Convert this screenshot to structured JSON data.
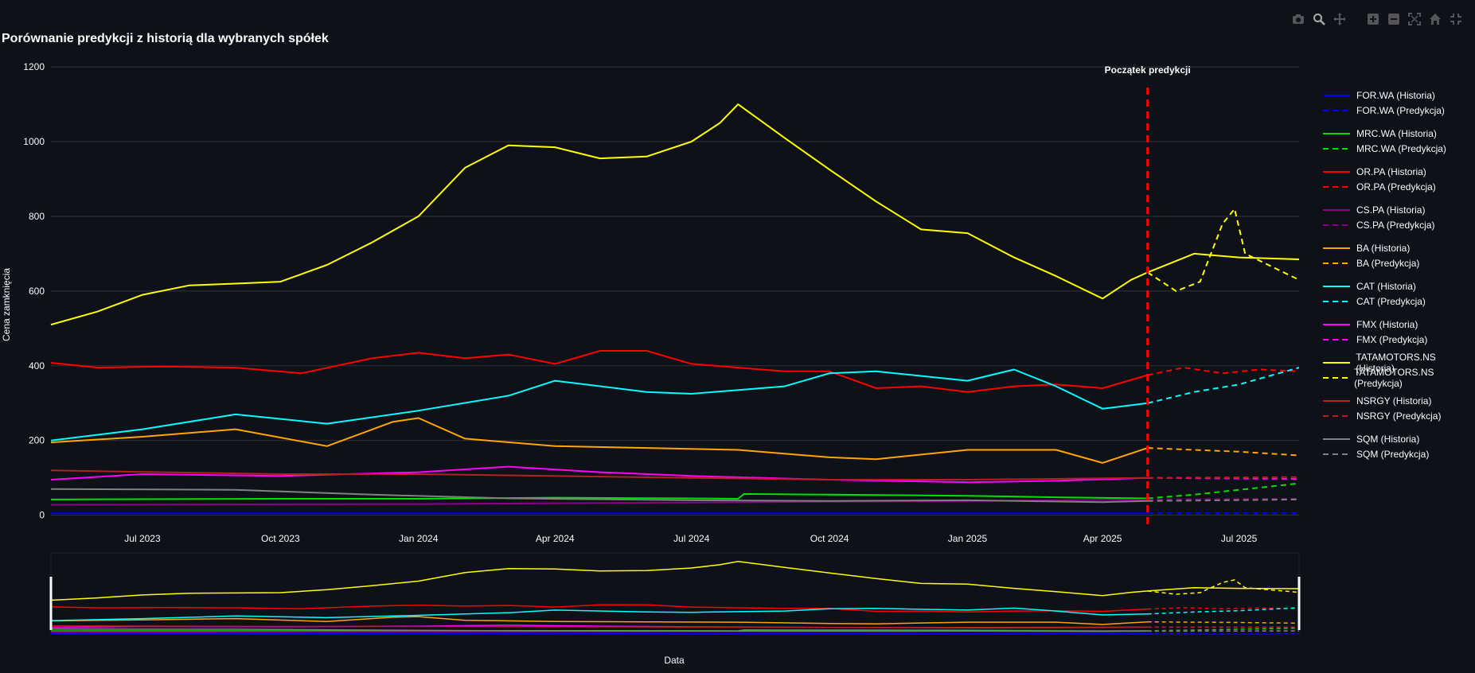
{
  "title": "Porównanie predykcji z historią dla wybranych spółek",
  "modebar": [
    {
      "icon": "camera-icon",
      "label": "Download plot"
    },
    {
      "icon": "zoom-icon",
      "label": "Zoom"
    },
    {
      "icon": "pan-icon",
      "label": "Pan"
    },
    {
      "icon": "zoom-in-icon",
      "label": "Zoom in"
    },
    {
      "icon": "zoom-out-icon",
      "label": "Zoom out"
    },
    {
      "icon": "autoscale-icon",
      "label": "Autoscale"
    },
    {
      "icon": "home-icon",
      "label": "Reset axes"
    },
    {
      "icon": "fullscreen-icon",
      "label": "Fullscreen"
    }
  ],
  "colors": {
    "background": "#0e1117",
    "grid": "#31333f",
    "text": "#fafafa",
    "prediction_line": "#ff0000"
  },
  "chart_data": {
    "type": "line",
    "title": "Porównanie predykcji z historią dla wybranych spółek",
    "xlabel": "Data",
    "ylabel": "Cena zamknięcia",
    "xlim": [
      "2023-05-01",
      "2025-08-10"
    ],
    "ylim": [
      -5,
      1230
    ],
    "x_ticks": [
      "Jul 2023",
      "Oct 2023",
      "Jan 2024",
      "Apr 2024",
      "Jul 2024",
      "Oct 2024",
      "Jan 2025",
      "Apr 2025",
      "Jul 2025"
    ],
    "x_tick_dates": [
      "2023-07-01",
      "2023-10-01",
      "2024-01-01",
      "2024-04-01",
      "2024-07-01",
      "2024-10-01",
      "2025-01-01",
      "2025-04-01",
      "2025-07-01"
    ],
    "y_ticks": [
      0,
      200,
      400,
      600,
      800,
      1000,
      1200
    ],
    "grid": true,
    "legend_position": "right",
    "range_slider": true,
    "annotation": {
      "text": "Początek predykcji",
      "x": "2025-05-01"
    },
    "series": [
      {
        "name": "FOR.WA (Historia)",
        "color": "#0000ff",
        "dash": false,
        "points": [
          [
            "2023-05-01",
            5
          ],
          [
            "2024-01-01",
            5
          ],
          [
            "2025-05-01",
            5
          ]
        ]
      },
      {
        "name": "FOR.WA (Predykcja)",
        "color": "#0000ff",
        "dash": true,
        "points": [
          [
            "2025-05-01",
            5
          ],
          [
            "2025-08-10",
            5
          ]
        ]
      },
      {
        "name": "MRC.WA (Historia)",
        "color": "#00e000",
        "dash": false,
        "points": [
          [
            "2023-05-01",
            42
          ],
          [
            "2023-07-01",
            43
          ],
          [
            "2023-10-01",
            44
          ],
          [
            "2024-01-01",
            44
          ],
          [
            "2024-04-01",
            47
          ],
          [
            "2024-07-01",
            45
          ],
          [
            "2024-08-01",
            44
          ],
          [
            "2024-08-05",
            57
          ],
          [
            "2024-10-01",
            55
          ],
          [
            "2025-01-01",
            52
          ],
          [
            "2025-03-01",
            48
          ],
          [
            "2025-05-01",
            45
          ]
        ]
      },
      {
        "name": "MRC.WA (Predykcja)",
        "color": "#00e000",
        "dash": true,
        "points": [
          [
            "2025-05-01",
            45
          ],
          [
            "2025-06-01",
            55
          ],
          [
            "2025-07-01",
            68
          ],
          [
            "2025-08-10",
            85
          ]
        ]
      },
      {
        "name": "OR.PA (Historia)",
        "color": "#ff0000",
        "dash": false,
        "points": [
          [
            "2023-05-01",
            408
          ],
          [
            "2023-06-01",
            395
          ],
          [
            "2023-07-15",
            398
          ],
          [
            "2023-09-01",
            395
          ],
          [
            "2023-10-15",
            380
          ],
          [
            "2023-12-01",
            420
          ],
          [
            "2024-01-01",
            435
          ],
          [
            "2024-02-01",
            420
          ],
          [
            "2024-03-01",
            430
          ],
          [
            "2024-04-01",
            405
          ],
          [
            "2024-05-01",
            440
          ],
          [
            "2024-06-01",
            440
          ],
          [
            "2024-07-01",
            405
          ],
          [
            "2024-08-01",
            395
          ],
          [
            "2024-09-01",
            385
          ],
          [
            "2024-10-01",
            385
          ],
          [
            "2024-11-01",
            340
          ],
          [
            "2024-12-01",
            345
          ],
          [
            "2025-01-01",
            330
          ],
          [
            "2025-02-01",
            345
          ],
          [
            "2025-03-01",
            350
          ],
          [
            "2025-04-01",
            340
          ],
          [
            "2025-05-01",
            375
          ]
        ]
      },
      {
        "name": "OR.PA (Predykcja)",
        "color": "#ff0000",
        "dash": true,
        "points": [
          [
            "2025-05-01",
            375
          ],
          [
            "2025-05-25",
            395
          ],
          [
            "2025-06-20",
            380
          ],
          [
            "2025-07-15",
            390
          ],
          [
            "2025-08-10",
            385
          ]
        ]
      },
      {
        "name": "CS.PA (Historia)",
        "color": "#8b008b",
        "dash": false,
        "points": [
          [
            "2023-05-01",
            28
          ],
          [
            "2024-01-01",
            30
          ],
          [
            "2024-07-01",
            34
          ],
          [
            "2025-01-01",
            38
          ],
          [
            "2025-05-01",
            42
          ]
        ]
      },
      {
        "name": "CS.PA (Predykcja)",
        "color": "#8b008b",
        "dash": true,
        "points": [
          [
            "2025-05-01",
            42
          ],
          [
            "2025-08-10",
            44
          ]
        ]
      },
      {
        "name": "BA (Historia)",
        "color": "#ffa500",
        "dash": false,
        "points": [
          [
            "2023-05-01",
            195
          ],
          [
            "2023-07-01",
            210
          ],
          [
            "2023-09-01",
            230
          ],
          [
            "2023-11-01",
            185
          ],
          [
            "2023-12-15",
            250
          ],
          [
            "2024-01-01",
            260
          ],
          [
            "2024-02-01",
            205
          ],
          [
            "2024-04-01",
            185
          ],
          [
            "2024-06-01",
            180
          ],
          [
            "2024-08-01",
            175
          ],
          [
            "2024-10-01",
            155
          ],
          [
            "2024-11-01",
            150
          ],
          [
            "2025-01-01",
            175
          ],
          [
            "2025-03-01",
            175
          ],
          [
            "2025-04-01",
            140
          ],
          [
            "2025-05-01",
            180
          ]
        ]
      },
      {
        "name": "BA (Predykcja)",
        "color": "#ffa500",
        "dash": true,
        "points": [
          [
            "2025-05-01",
            180
          ],
          [
            "2025-06-01",
            175
          ],
          [
            "2025-07-01",
            170
          ],
          [
            "2025-08-10",
            160
          ]
        ]
      },
      {
        "name": "CAT (Historia)",
        "color": "#00ffff",
        "dash": false,
        "points": [
          [
            "2023-05-01",
            200
          ],
          [
            "2023-07-01",
            230
          ],
          [
            "2023-09-01",
            270
          ],
          [
            "2023-11-01",
            245
          ],
          [
            "2024-01-01",
            280
          ],
          [
            "2024-03-01",
            320
          ],
          [
            "2024-04-01",
            360
          ],
          [
            "2024-06-01",
            330
          ],
          [
            "2024-07-01",
            325
          ],
          [
            "2024-09-01",
            345
          ],
          [
            "2024-10-01",
            380
          ],
          [
            "2024-11-01",
            385
          ],
          [
            "2025-01-01",
            360
          ],
          [
            "2025-02-01",
            390
          ],
          [
            "2025-03-01",
            345
          ],
          [
            "2025-04-01",
            285
          ],
          [
            "2025-05-01",
            300
          ]
        ]
      },
      {
        "name": "CAT (Predykcja)",
        "color": "#00ffff",
        "dash": true,
        "points": [
          [
            "2025-05-01",
            300
          ],
          [
            "2025-06-01",
            330
          ],
          [
            "2025-07-01",
            350
          ],
          [
            "2025-08-10",
            395
          ]
        ]
      },
      {
        "name": "FMX (Historia)",
        "color": "#ff00ff",
        "dash": false,
        "points": [
          [
            "2023-05-01",
            95
          ],
          [
            "2023-07-01",
            110
          ],
          [
            "2023-10-01",
            105
          ],
          [
            "2024-01-01",
            115
          ],
          [
            "2024-03-01",
            130
          ],
          [
            "2024-05-01",
            115
          ],
          [
            "2024-07-01",
            105
          ],
          [
            "2024-10-01",
            95
          ],
          [
            "2025-01-01",
            88
          ],
          [
            "2025-03-01",
            92
          ],
          [
            "2025-05-01",
            100
          ]
        ]
      },
      {
        "name": "FMX (Predykcja)",
        "color": "#ff00ff",
        "dash": true,
        "points": [
          [
            "2025-05-01",
            100
          ],
          [
            "2025-08-10",
            97
          ]
        ]
      },
      {
        "name": "TATAMOTORS.NS (Historia)",
        "color": "#ffff00",
        "dash": false,
        "points": [
          [
            "2023-05-01",
            510
          ],
          [
            "2023-06-01",
            545
          ],
          [
            "2023-07-01",
            590
          ],
          [
            "2023-08-01",
            615
          ],
          [
            "2023-09-01",
            620
          ],
          [
            "2023-10-01",
            625
          ],
          [
            "2023-11-01",
            670
          ],
          [
            "2023-12-01",
            730
          ],
          [
            "2024-01-01",
            800
          ],
          [
            "2024-02-01",
            930
          ],
          [
            "2024-03-01",
            990
          ],
          [
            "2024-04-01",
            985
          ],
          [
            "2024-05-01",
            955
          ],
          [
            "2024-06-01",
            960
          ],
          [
            "2024-07-01",
            1000
          ],
          [
            "2024-07-20",
            1050
          ],
          [
            "2024-08-01",
            1100
          ],
          [
            "2024-09-01",
            1010
          ],
          [
            "2024-10-01",
            925
          ],
          [
            "2024-11-01",
            840
          ],
          [
            "2024-12-01",
            765
          ],
          [
            "2025-01-01",
            755
          ],
          [
            "2025-02-01",
            690
          ],
          [
            "2025-03-01",
            640
          ],
          [
            "2025-04-01",
            580
          ],
          [
            "2025-04-20",
            630
          ],
          [
            "2025-05-01",
            650
          ],
          [
            "2025-06-01",
            700
          ],
          [
            "2025-07-01",
            690
          ],
          [
            "2025-08-10",
            685
          ]
        ]
      },
      {
        "name": "TATAMOTORS.NS (Predykcja)",
        "color": "#ffff00",
        "dash": true,
        "points": [
          [
            "2025-05-01",
            650
          ],
          [
            "2025-05-20",
            600
          ],
          [
            "2025-06-05",
            625
          ],
          [
            "2025-06-20",
            780
          ],
          [
            "2025-06-28",
            820
          ],
          [
            "2025-07-05",
            700
          ],
          [
            "2025-08-10",
            630
          ]
        ]
      },
      {
        "name": "NSRGY (Historia)",
        "color": "#b22222",
        "dash": false,
        "points": [
          [
            "2023-05-01",
            120
          ],
          [
            "2023-10-01",
            110
          ],
          [
            "2024-01-01",
            110
          ],
          [
            "2024-07-01",
            100
          ],
          [
            "2024-10-01",
            95
          ],
          [
            "2025-01-01",
            95
          ],
          [
            "2025-05-01",
            100
          ]
        ]
      },
      {
        "name": "NSRGY (Predykcja)",
        "color": "#b22222",
        "dash": true,
        "points": [
          [
            "2025-05-01",
            100
          ],
          [
            "2025-08-10",
            102
          ]
        ]
      },
      {
        "name": "SQM (Historia)",
        "color": "#808080",
        "dash": false,
        "points": [
          [
            "2023-05-01",
            70
          ],
          [
            "2023-09-01",
            68
          ],
          [
            "2023-12-01",
            55
          ],
          [
            "2024-03-01",
            45
          ],
          [
            "2024-07-01",
            40
          ],
          [
            "2024-10-01",
            38
          ],
          [
            "2025-01-01",
            40
          ],
          [
            "2025-04-01",
            35
          ],
          [
            "2025-05-01",
            38
          ]
        ]
      },
      {
        "name": "SQM (Predykcja)",
        "color": "#808080",
        "dash": true,
        "points": [
          [
            "2025-05-01",
            38
          ],
          [
            "2025-08-10",
            42
          ]
        ]
      }
    ]
  }
}
